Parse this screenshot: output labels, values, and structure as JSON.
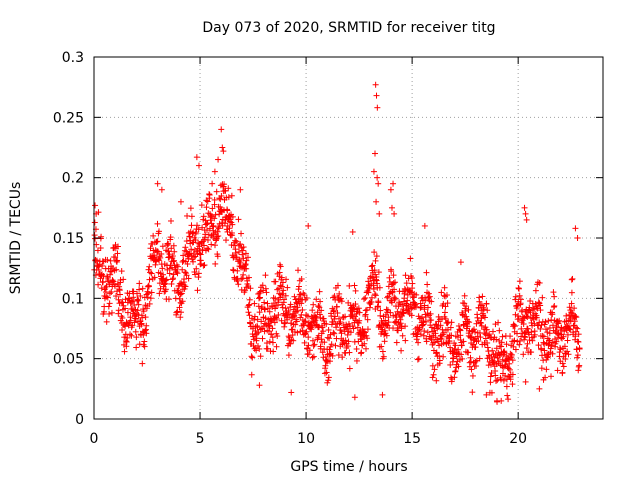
{
  "chart_data": {
    "type": "scatter",
    "title": "Day 073 of 2020, SRMTID for receiver titg",
    "xlabel": "GPS time / hours",
    "ylabel": "SRMTID / TECUs",
    "xlim": [
      0,
      24
    ],
    "ylim": [
      0,
      0.3
    ],
    "xticks": [
      0,
      5,
      10,
      15,
      20
    ],
    "xtick_labels": [
      "0",
      "5",
      "10",
      "15",
      "20"
    ],
    "yticks": [
      0,
      0.05,
      0.1,
      0.15,
      0.2,
      0.25,
      0.3
    ],
    "ytick_labels": [
      "0",
      "0.05",
      "0.1",
      "0.15",
      "0.2",
      "0.25",
      "0.3"
    ],
    "grid": true,
    "marker": "plus",
    "color": "#ff0000",
    "series": [
      {
        "name": "SRMTID",
        "trend": [
          [
            0.0,
            0.12
          ],
          [
            0.5,
            0.11
          ],
          [
            1.0,
            0.115
          ],
          [
            1.5,
            0.1
          ],
          [
            2.0,
            0.085
          ],
          [
            2.5,
            0.1
          ],
          [
            3.0,
            0.13
          ],
          [
            3.5,
            0.12
          ],
          [
            4.0,
            0.11
          ],
          [
            4.5,
            0.14
          ],
          [
            5.0,
            0.16
          ],
          [
            5.5,
            0.16
          ],
          [
            6.0,
            0.17
          ],
          [
            6.5,
            0.145
          ],
          [
            7.0,
            0.12
          ],
          [
            7.5,
            0.09
          ],
          [
            8.0,
            0.085
          ],
          [
            8.5,
            0.09
          ],
          [
            9.0,
            0.085
          ],
          [
            9.5,
            0.08
          ],
          [
            10.0,
            0.085
          ],
          [
            10.5,
            0.08
          ],
          [
            11.0,
            0.075
          ],
          [
            11.5,
            0.08
          ],
          [
            12.0,
            0.07
          ],
          [
            12.5,
            0.075
          ],
          [
            13.0,
            0.095
          ],
          [
            13.3,
            0.12
          ],
          [
            13.7,
            0.08
          ],
          [
            14.0,
            0.1
          ],
          [
            14.5,
            0.09
          ],
          [
            15.0,
            0.085
          ],
          [
            15.5,
            0.075
          ],
          [
            16.0,
            0.07
          ],
          [
            16.5,
            0.08
          ],
          [
            17.0,
            0.07
          ],
          [
            17.5,
            0.065
          ],
          [
            18.0,
            0.06
          ],
          [
            18.5,
            0.065
          ],
          [
            19.0,
            0.045
          ],
          [
            19.5,
            0.055
          ],
          [
            20.0,
            0.09
          ],
          [
            20.5,
            0.08
          ],
          [
            21.0,
            0.065
          ],
          [
            21.5,
            0.06
          ],
          [
            22.0,
            0.075
          ],
          [
            22.5,
            0.085
          ],
          [
            22.9,
            0.07
          ]
        ],
        "spread": 0.025,
        "n_points": 1900,
        "peaks": [
          [
            4.85,
            0.217
          ],
          [
            4.95,
            0.21
          ],
          [
            5.7,
            0.205
          ],
          [
            5.85,
            0.215
          ],
          [
            6.0,
            0.24
          ],
          [
            6.05,
            0.225
          ],
          [
            6.1,
            0.222
          ],
          [
            6.5,
            0.185
          ],
          [
            3.0,
            0.195
          ],
          [
            3.2,
            0.19
          ],
          [
            4.1,
            0.18
          ],
          [
            6.9,
            0.19
          ],
          [
            13.28,
            0.277
          ],
          [
            13.32,
            0.268
          ],
          [
            13.36,
            0.258
          ],
          [
            13.2,
            0.205
          ],
          [
            13.25,
            0.22
          ],
          [
            13.35,
            0.2
          ],
          [
            13.4,
            0.195
          ],
          [
            13.3,
            0.18
          ],
          [
            13.45,
            0.17
          ],
          [
            14.0,
            0.19
          ],
          [
            14.1,
            0.195
          ],
          [
            14.05,
            0.175
          ],
          [
            14.15,
            0.17
          ],
          [
            20.3,
            0.175
          ],
          [
            20.35,
            0.17
          ],
          [
            20.4,
            0.165
          ],
          [
            22.7,
            0.158
          ],
          [
            22.8,
            0.15
          ],
          [
            0.05,
            0.177
          ],
          [
            0.1,
            0.17
          ],
          [
            10.1,
            0.16
          ],
          [
            12.2,
            0.155
          ],
          [
            15.6,
            0.16
          ],
          [
            17.3,
            0.13
          ]
        ],
        "lows": [
          [
            7.8,
            0.028
          ],
          [
            9.3,
            0.022
          ],
          [
            12.3,
            0.018
          ],
          [
            13.6,
            0.02
          ],
          [
            18.5,
            0.02
          ],
          [
            19.0,
            0.015
          ],
          [
            19.2,
            0.015
          ],
          [
            11.0,
            0.03
          ],
          [
            21.0,
            0.025
          ]
        ]
      }
    ]
  }
}
